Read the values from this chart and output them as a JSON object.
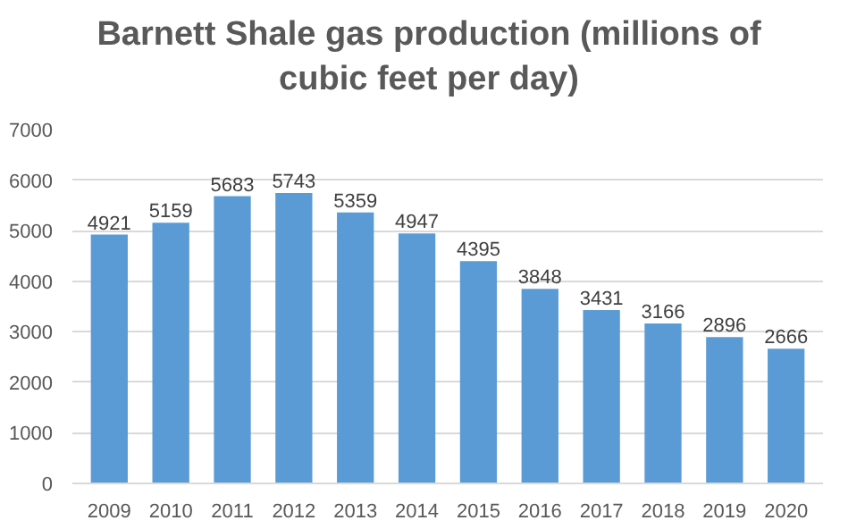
{
  "chart_data": {
    "type": "bar",
    "title": "Barnett Shale gas production (millions of cubic feet per day)",
    "categories": [
      "2009",
      "2010",
      "2011",
      "2012",
      "2013",
      "2014",
      "2015",
      "2016",
      "2017",
      "2018",
      "2019",
      "2020"
    ],
    "values": [
      4921,
      5159,
      5683,
      5743,
      5359,
      4947,
      4395,
      3848,
      3431,
      3166,
      2896,
      2666
    ],
    "color": "#5b9bd5",
    "ylim": [
      0,
      7000
    ],
    "yticks": [
      0,
      1000,
      2000,
      3000,
      4000,
      5000,
      6000,
      7000
    ],
    "grid": "y",
    "data_labels": true
  }
}
